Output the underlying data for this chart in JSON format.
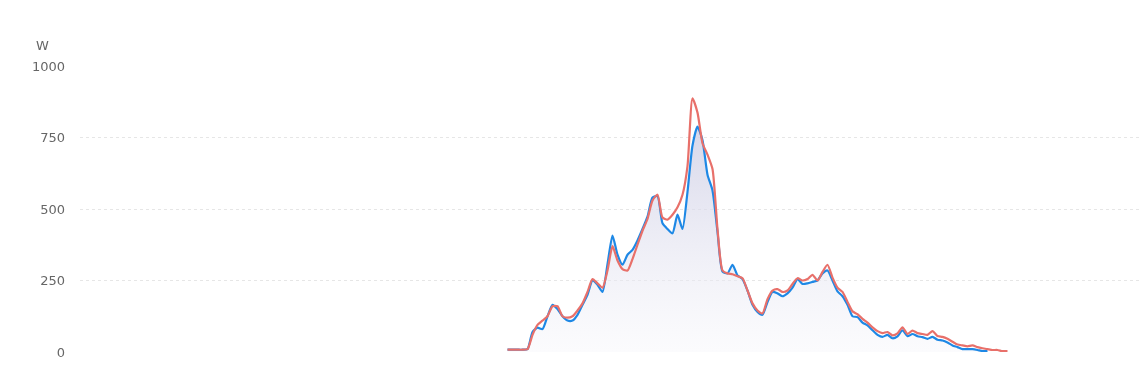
{
  "chart_data": {
    "type": "line",
    "ylabel": "W",
    "ylim": [
      0,
      1000
    ],
    "yticks": [
      0,
      250,
      500,
      750,
      1000
    ],
    "grid": "y",
    "marker": "none",
    "categories": [
      null,
      null,
      null,
      null,
      null,
      null,
      null,
      null,
      null,
      null,
      null,
      null,
      null,
      null,
      null,
      null,
      null,
      null,
      null,
      null,
      null,
      null,
      null,
      null,
      null,
      null,
      null,
      null,
      null,
      null,
      null,
      null,
      null,
      null,
      null,
      null,
      null,
      null,
      null,
      null,
      null,
      null,
      null,
      null,
      null,
      null,
      null,
      null,
      null,
      null,
      null,
      null,
      null,
      null,
      null,
      null,
      null,
      null,
      null,
      null,
      null,
      null,
      null,
      null,
      null,
      null,
      null,
      null,
      null,
      null,
      null,
      null,
      null,
      null,
      null,
      null,
      null,
      null,
      null,
      null,
      null,
      null,
      null,
      null,
      null,
      null,
      null,
      null,
      null,
      null,
      null,
      null,
      null,
      null,
      null,
      null,
      null,
      null,
      null,
      null,
      null,
      null,
      null,
      null,
      null,
      null,
      null,
      null,
      null,
      null,
      null,
      null,
      null,
      null,
      null,
      null,
      null,
      null,
      null,
      null,
      null,
      null,
      null,
      null,
      null,
      null,
      null,
      null,
      null,
      null,
      null,
      null,
      null,
      null,
      null,
      null,
      null,
      null,
      null,
      null,
      null,
      null,
      null,
      null,
      null,
      null,
      null,
      null,
      null,
      null,
      null,
      null,
      null,
      null,
      null,
      null,
      null,
      null,
      null,
      null,
      null,
      null,
      null,
      null,
      null,
      null,
      null,
      null,
      null,
      null,
      null,
      null,
      null,
      null,
      null,
      null,
      null,
      null,
      null,
      null,
      null,
      null,
      null,
      null,
      null,
      null,
      null,
      null,
      null,
      null,
      null,
      null,
      null,
      null,
      null,
      null,
      null,
      null,
      null,
      null,
      null,
      null,
      null,
      null,
      null,
      null,
      null,
      null,
      null,
      null,
      null,
      null
    ],
    "series": [
      {
        "type": "area",
        "color": "#1e88e5",
        "values": [
          null,
          null,
          null,
          null,
          null,
          null,
          null,
          null,
          null,
          null,
          null,
          null,
          null,
          null,
          null,
          null,
          null,
          null,
          null,
          null,
          null,
          null,
          null,
          null,
          null,
          null,
          null,
          null,
          null,
          null,
          null,
          null,
          null,
          null,
          null,
          null,
          null,
          null,
          null,
          null,
          null,
          null,
          null,
          null,
          null,
          null,
          null,
          null,
          null,
          null,
          null,
          null,
          null,
          null,
          null,
          null,
          null,
          null,
          null,
          null,
          null,
          null,
          null,
          null,
          null,
          null,
          null,
          null,
          null,
          null,
          null,
          null,
          null,
          null,
          null,
          null,
          null,
          null,
          null,
          null,
          null,
          null,
          null,
          null,
          null,
          8,
          8,
          8,
          8,
          10,
          70,
          85,
          80,
          125,
          165,
          150,
          125,
          110,
          110,
          130,
          165,
          200,
          250,
          235,
          210,
          307,
          407,
          340,
          305,
          340,
          357,
          390,
          430,
          473,
          540,
          545,
          450,
          430,
          415,
          480,
          430,
          560,
          722,
          788,
          740,
          620,
          565,
          420,
          281,
          275,
          305,
          268,
          255,
          215,
          165,
          140,
          130,
          175,
          210,
          205,
          195,
          205,
          225,
          255,
          238,
          240,
          245,
          250,
          275,
          285,
          250,
          212,
          195,
          165,
          125,
          122,
          103,
          93,
          76,
          60,
          53,
          60,
          48,
          55,
          76,
          55,
          63,
          55,
          52,
          46,
          53,
          43,
          40,
          33,
          23,
          17,
          10,
          10,
          10,
          7,
          3,
          3,
          null,
          null,
          null,
          null,
          null,
          null,
          null,
          null,
          null,
          null,
          null,
          null,
          null,
          null,
          null,
          null,
          null,
          null,
          null,
          null,
          null,
          null,
          null,
          null,
          null,
          null,
          null,
          null,
          null,
          null
        ]
      },
      {
        "color": "#e8706a",
        "values": [
          null,
          null,
          null,
          null,
          null,
          null,
          null,
          null,
          null,
          null,
          null,
          null,
          null,
          null,
          null,
          null,
          null,
          null,
          null,
          null,
          null,
          null,
          null,
          null,
          null,
          null,
          null,
          null,
          null,
          null,
          null,
          null,
          null,
          null,
          null,
          null,
          null,
          null,
          null,
          null,
          null,
          null,
          null,
          null,
          null,
          null,
          null,
          null,
          null,
          null,
          null,
          null,
          null,
          null,
          null,
          null,
          null,
          null,
          null,
          null,
          null,
          null,
          null,
          null,
          null,
          null,
          null,
          null,
          null,
          null,
          null,
          null,
          null,
          null,
          null,
          null,
          null,
          null,
          null,
          null,
          null,
          null,
          null,
          null,
          null,
          8,
          8,
          8,
          8,
          10,
          60,
          95,
          110,
          125,
          160,
          160,
          125,
          120,
          125,
          145,
          170,
          210,
          255,
          240,
          225,
          285,
          370,
          320,
          290,
          285,
          325,
          375,
          424,
          465,
          530,
          550,
          470,
          463,
          480,
          506,
          550,
          650,
          887,
          837,
          730,
          690,
          640,
          430,
          285,
          275,
          272,
          265,
          258,
          215,
          170,
          145,
          135,
          185,
          215,
          220,
          210,
          215,
          238,
          258,
          250,
          255,
          270,
          250,
          280,
          305,
          260,
          225,
          210,
          175,
          142,
          132,
          116,
          103,
          86,
          73,
          66,
          70,
          58,
          65,
          86,
          63,
          75,
          66,
          63,
          60,
          73,
          56,
          53,
          46,
          36,
          26,
          23,
          20,
          23,
          17,
          13,
          10,
          7,
          7,
          3,
          3,
          null,
          null,
          null,
          null,
          null,
          null,
          null,
          null,
          null,
          null,
          null,
          null,
          null,
          null,
          null,
          null,
          null,
          null,
          null,
          null,
          null,
          null,
          null,
          null,
          null,
          null
        ]
      }
    ]
  }
}
